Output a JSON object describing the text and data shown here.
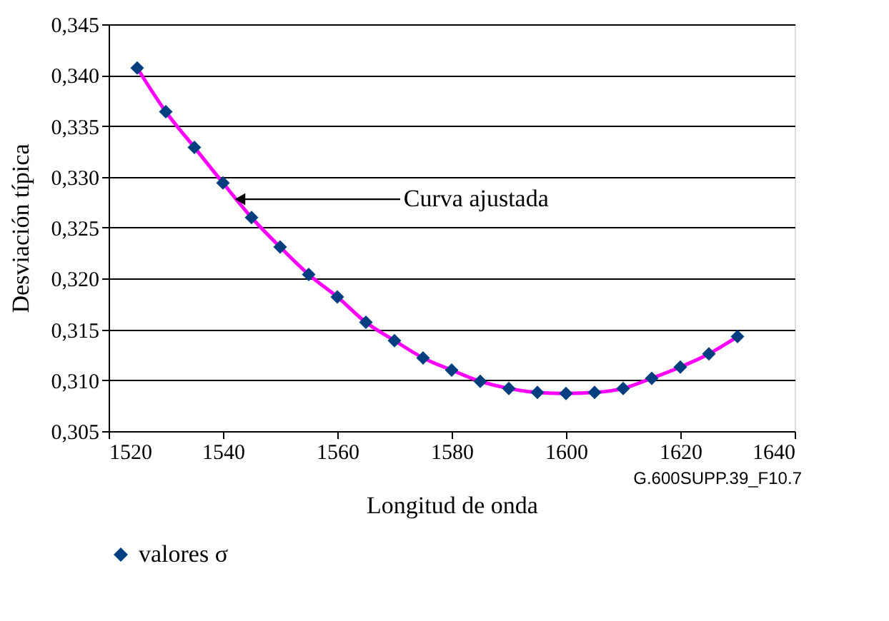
{
  "chart_data": {
    "type": "scatter",
    "xlabel": "Longitud de onda",
    "ylabel": "Desviación típica",
    "x": [
      1525,
      1530,
      1535,
      1540,
      1545,
      1550,
      1555,
      1560,
      1565,
      1570,
      1575,
      1580,
      1585,
      1590,
      1595,
      1600,
      1605,
      1610,
      1615,
      1620,
      1625,
      1630
    ],
    "series": [
      {
        "type": "line",
        "color": "#ff00ff",
        "marker": "none",
        "line_style": "solid",
        "x": [
          1525,
          1530,
          1535,
          1540,
          1545,
          1550,
          1555,
          1560,
          1565,
          1570,
          1575,
          1580,
          1585,
          1590,
          1595,
          1600,
          1605,
          1610,
          1615,
          1620,
          1625,
          1630
        ],
        "values": [
          0.3407,
          0.3364,
          0.3329,
          0.3294,
          0.326,
          0.3231,
          0.3204,
          0.3182,
          0.3157,
          0.3139,
          0.3122,
          0.311,
          0.3099,
          0.3092,
          0.3088,
          0.3087,
          0.3088,
          0.3092,
          0.3102,
          0.3113,
          0.3126,
          0.3143
        ]
      },
      {
        "name": "valores σ",
        "color": "#003f7f",
        "marker": "diamond",
        "values": [
          0.3407,
          0.3364,
          0.3329,
          0.3294,
          0.326,
          0.3231,
          0.3204,
          0.3182,
          0.3157,
          0.3139,
          0.3122,
          0.311,
          0.3099,
          0.3092,
          0.3088,
          0.3087,
          0.3088,
          0.3092,
          0.3102,
          0.3113,
          0.3126,
          0.3143
        ]
      }
    ],
    "xlim": [
      1520,
      1640
    ],
    "xticks": [
      1520,
      1540,
      1560,
      1580,
      1600,
      1620,
      1640
    ],
    "ylim": [
      0.305,
      0.345
    ],
    "yticks": [
      {
        "value": 0.305,
        "label": "0,305"
      },
      {
        "value": 0.31,
        "label": "0,310"
      },
      {
        "value": 0.315,
        "label": "0,315"
      },
      {
        "value": 0.32,
        "label": "0,320"
      },
      {
        "value": 0.325,
        "label": "0,325"
      },
      {
        "value": 0.33,
        "label": "0,330"
      },
      {
        "value": 0.335,
        "label": "0,335"
      },
      {
        "value": 0.34,
        "label": "0,340"
      },
      {
        "value": 0.345,
        "label": "0,345"
      }
    ],
    "grid": "y",
    "legend": "bottom",
    "annotations": [
      {
        "text": "Curva ajustada",
        "x": 1541,
        "y": 0.3278
      },
      "G.600SUPP.39_F10.7"
    ]
  }
}
